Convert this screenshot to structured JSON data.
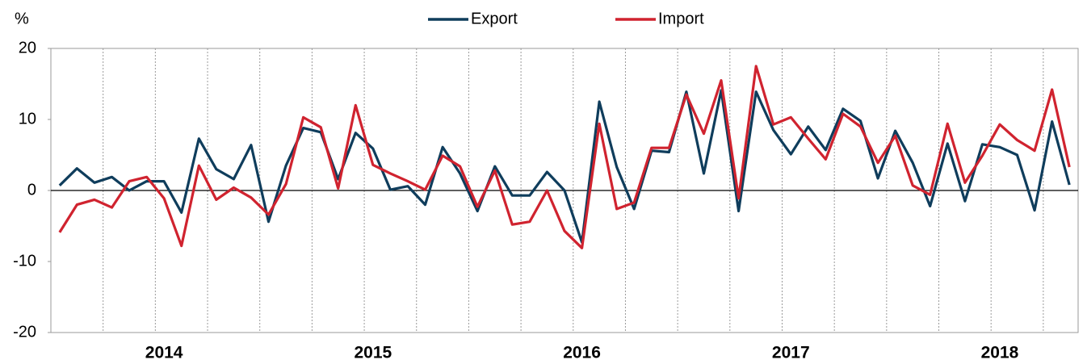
{
  "chart_data": {
    "type": "line",
    "y_label": "%",
    "categories": [
      null,
      null,
      null,
      null,
      null,
      null,
      "2014",
      null,
      null,
      null,
      null,
      null,
      null,
      null,
      null,
      null,
      null,
      null,
      "2015",
      null,
      null,
      null,
      null,
      null,
      null,
      null,
      null,
      null,
      null,
      null,
      "2016",
      null,
      null,
      null,
      null,
      null,
      null,
      null,
      null,
      null,
      null,
      null,
      "2017",
      null,
      null,
      null,
      null,
      null,
      null,
      null,
      null,
      null,
      null,
      null,
      "2018",
      null,
      null,
      null,
      null
    ],
    "series": [
      {
        "name": "Export",
        "color": "#0f3d5c",
        "values": [
          0.7,
          3.1,
          1.1,
          1.9,
          0.0,
          1.3,
          1.3,
          -3.1,
          7.3,
          3.0,
          1.6,
          6.4,
          -4.4,
          3.5,
          8.8,
          8.2,
          1.6,
          8.1,
          5.9,
          0.1,
          0.6,
          -2.0,
          6.1,
          2.4,
          -2.9,
          3.4,
          -0.7,
          -0.7,
          2.6,
          0.0,
          -7.3,
          12.5,
          3.3,
          -2.6,
          5.6,
          5.4,
          13.9,
          2.4,
          14.1,
          -2.9,
          13.9,
          8.5,
          5.1,
          9.0,
          5.7,
          11.5,
          9.8,
          1.7,
          8.4,
          3.9,
          -2.2,
          6.6,
          -1.5,
          6.5,
          6.1,
          5.0,
          -2.8,
          9.7,
          0.8
        ]
      },
      {
        "name": "Import",
        "color": "#d0232f",
        "values": [
          -5.9,
          -2.0,
          -1.3,
          -2.4,
          1.3,
          1.9,
          -1.1,
          -7.8,
          3.5,
          -1.3,
          0.4,
          -1.0,
          -3.4,
          0.9,
          10.3,
          8.9,
          0.3,
          12.0,
          3.6,
          2.4,
          1.3,
          0.1,
          4.9,
          3.4,
          -2.3,
          2.8,
          -4.8,
          -4.4,
          0.0,
          -5.7,
          -8.1,
          9.4,
          -2.6,
          -1.7,
          6.0,
          6.0,
          13.5,
          8.0,
          15.5,
          -1.1,
          17.5,
          9.3,
          10.3,
          7.3,
          4.4,
          10.8,
          9.0,
          3.9,
          7.7,
          0.7,
          -0.6,
          9.4,
          1.1,
          4.9,
          9.3,
          7.1,
          5.6,
          14.2,
          3.3
        ]
      }
    ],
    "ylim": [
      -20,
      20
    ],
    "yticks": [
      20,
      10,
      0,
      -10,
      -20
    ],
    "grid": false,
    "legend": "top"
  }
}
